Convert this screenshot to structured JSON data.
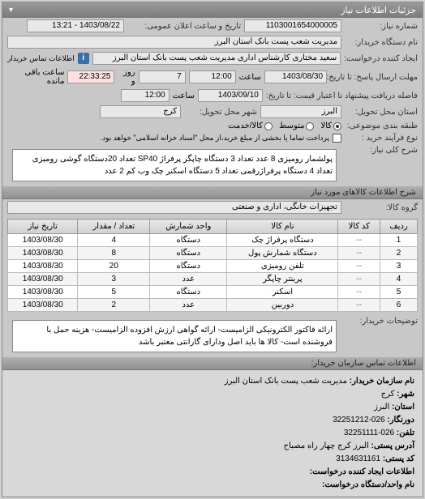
{
  "header": {
    "title": "جزئیات اطلاعات نیاز"
  },
  "fields": {
    "request_number_label": "شماره نیاز:",
    "request_number": "1103001654000005",
    "announce_label": "تاریخ و ساعت اعلان عمومی:",
    "announce_value": "1403/08/22 - 13:21",
    "buyer_org_label": "نام دستگاه خریدار:",
    "buyer_org": "مدیریت شعب پست بانک استان البرز",
    "requester_label": "ایجاد کننده درخواست:",
    "requester": "سعید مختاری کارشناس اداری مدیریت شعب پست بانک استان البرز",
    "contact_info_label": "اطلاعات تماس خریدار",
    "deadline_send_label": "مهلت ارسال پاسخ: تا تاریخ:",
    "deadline_send_date": "1403/08/30",
    "time_label": "ساعت",
    "deadline_send_time": "12:00",
    "days_label": "روز و",
    "days_value": "7",
    "remain_label": "ساعت باقی مانده",
    "remain_value": "22:33:25",
    "validity_label": "فاصله دریافت پیشنهاد تا اعتبار قیمت: تا تاریخ:",
    "validity_date": "1403/09/10",
    "validity_time": "12:00",
    "delivery_state_label": "استان محل تحویل:",
    "delivery_state": "البرز",
    "delivery_city_label": "شهر محل تحویل:",
    "delivery_city": "کرج",
    "budget_label": "طبقه بندی موضوعی:",
    "budget_opts": {
      "a": "کالا",
      "b": "متوسط",
      "c": "کالا/خدمت"
    },
    "process_label": "نوع فرآیند خرید :",
    "process_note": "پرداخت تماما یا بخشی از مبلغ خرید،از محل \"اسناد خزانه اسلامی\" خواهد بود.",
    "general_desc_label": "شرح کلی نیاز:",
    "general_desc": "پولشمار رومیزی 8 عدد تعداد 3 دستگاه چاپگر پرفراژ SP40 تعداد 20دستگاه گوشی رومیزی تعداد 4 دستگاه پرفراژرقمی تعداد 5 دستگاه اسکنر چک وب کم 2 عدد",
    "items_header": "شرح اطلاعات کالاهای مورد نیاز",
    "group_label": "گروه کالا:",
    "group_value": "تجهیزات خانگی، اداری و صنعتی",
    "buyer_note_label": "توضیحات خریدار:",
    "buyer_note": "ارائه فاکتور الکترونیکی الزامیست- ارائه گواهی ارزش افزوده الزامیست- هزینه حمل با فروشنده است- کالا ها باید اصل ودارای گارانتی معتبر باشد",
    "contact_header": "اطلاعات تماس سازمان خریدار:"
  },
  "table": {
    "cols": [
      "ردیف",
      "کد کالا",
      "نام کالا",
      "واحد شمارش",
      "تعداد / مقدار",
      "تاریخ نیاز"
    ],
    "rows": [
      [
        "1",
        "--",
        "دستگاه پرفراژ چک",
        "دستگاه",
        "4",
        "1403/08/30"
      ],
      [
        "2",
        "--",
        "دستگاه شمارش پول",
        "دستگاه",
        "8",
        "1403/08/30"
      ],
      [
        "3",
        "--",
        "تلفن رومیزی",
        "دستگاه",
        "20",
        "1403/08/30"
      ],
      [
        "4",
        "--",
        "پرینتر چاپگر",
        "عدد",
        "3",
        "1403/08/30"
      ],
      [
        "5",
        "--",
        "اسکنر",
        "دستگاه",
        "5",
        "1403/08/30"
      ],
      [
        "6",
        "--",
        "دوربین",
        "عدد",
        "2",
        "1403/08/30"
      ]
    ]
  },
  "contact": {
    "org_label": "نام سازمان خریدار:",
    "org": "مدیریت شعب پست بانک استان البرز",
    "city_label": "شهر:",
    "city": "کرج",
    "state_label": "استان:",
    "state": "البرز",
    "fax_label": "دورنگار:",
    "fax": "026-32251212",
    "phone_label": "تلفن:",
    "phone": "026-32251111",
    "address_label": "آدرس پستی:",
    "address": "البرز کرج چهار راه مصباح",
    "postal_label": "کد پستی:",
    "postal": "3134631161",
    "creator_label": "اطلاعات ایجاد کننده درخواست:",
    "unit_label": "نام واحد/دستگاه درخواست:"
  }
}
